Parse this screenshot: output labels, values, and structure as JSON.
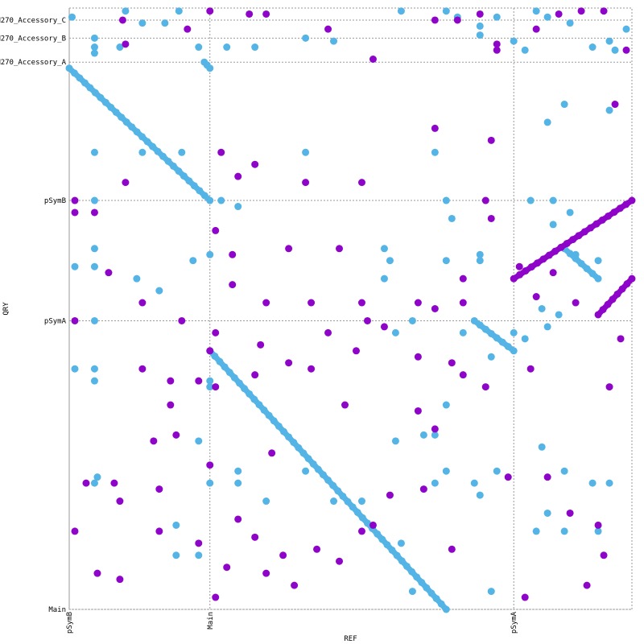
{
  "chart_data": {
    "type": "scatter",
    "title": "",
    "xlabel": "REF",
    "ylabel": "QRY",
    "grid": true,
    "colors": {
      "forward": "#55b4e6",
      "reverse": "#8e05c9",
      "grid": "#9a9a9a"
    },
    "x_axis": {
      "range": [
        0,
        10.0
      ],
      "ticks": [
        {
          "label": "pSymB",
          "value": 0.0
        },
        {
          "label": "Main",
          "value": 2.5
        },
        {
          "label": "pSymA",
          "value": 7.9
        }
      ]
    },
    "y_axis": {
      "range": [
        0,
        10.0
      ],
      "inverted": false,
      "ticks": [
        {
          "label": "Main",
          "value": 0.0
        },
        {
          "label": "pSymA",
          "value": 4.8
        },
        {
          "label": "pSymB",
          "value": 6.8
        },
        {
          "label": "M270_Accessory_A",
          "value": 9.1
        },
        {
          "label": "M270_Accessory_B",
          "value": 9.5
        },
        {
          "label": "M270_Accessory_C",
          "value": 9.8
        }
      ]
    },
    "series": [
      {
        "name": "forward",
        "color": "#55b4e6",
        "segments": [
          [
            [
              0.0,
              9.0
            ],
            [
              2.5,
              6.8
            ]
          ],
          [
            [
              2.5,
              4.3
            ],
            [
              6.7,
              0.0
            ]
          ],
          [
            [
              7.2,
              4.8
            ],
            [
              7.9,
              4.3
            ]
          ],
          [
            [
              8.8,
              6.0
            ],
            [
              9.4,
              5.5
            ]
          ],
          [
            [
              2.4,
              9.1
            ],
            [
              2.5,
              9.0
            ]
          ]
        ],
        "points": [
          [
            0.05,
            9.85
          ],
          [
            0.45,
            9.5
          ],
          [
            0.45,
            9.35
          ],
          [
            0.45,
            9.25
          ],
          [
            0.9,
            9.35
          ],
          [
            1.0,
            9.95
          ],
          [
            1.3,
            9.75
          ],
          [
            1.7,
            9.75
          ],
          [
            1.95,
            9.95
          ],
          [
            2.3,
            9.35
          ],
          [
            2.8,
            9.35
          ],
          [
            3.3,
            9.35
          ],
          [
            4.2,
            9.5
          ],
          [
            4.7,
            9.45
          ],
          [
            5.9,
            9.95
          ],
          [
            6.7,
            9.95
          ],
          [
            6.9,
            9.85
          ],
          [
            7.3,
            9.55
          ],
          [
            7.3,
            9.7
          ],
          [
            7.6,
            9.85
          ],
          [
            7.9,
            9.45
          ],
          [
            8.1,
            9.3
          ],
          [
            8.3,
            9.95
          ],
          [
            8.5,
            9.85
          ],
          [
            8.9,
            9.75
          ],
          [
            9.3,
            9.35
          ],
          [
            9.6,
            9.45
          ],
          [
            9.9,
            9.65
          ],
          [
            0.45,
            7.6
          ],
          [
            0.45,
            6.8
          ],
          [
            1.3,
            7.6
          ],
          [
            2.0,
            7.6
          ],
          [
            3.0,
            6.7
          ],
          [
            4.2,
            7.6
          ],
          [
            2.7,
            6.8
          ],
          [
            0.45,
            6.0
          ],
          [
            0.45,
            5.7
          ],
          [
            0.1,
            5.7
          ],
          [
            1.2,
            5.5
          ],
          [
            1.6,
            5.3
          ],
          [
            2.2,
            5.8
          ],
          [
            2.5,
            5.9
          ],
          [
            5.7,
            5.8
          ],
          [
            6.7,
            5.8
          ],
          [
            6.8,
            6.5
          ],
          [
            6.5,
            7.6
          ],
          [
            6.7,
            6.8
          ],
          [
            5.6,
            6.0
          ],
          [
            5.6,
            5.5
          ],
          [
            7.3,
            5.8
          ],
          [
            7.3,
            5.9
          ],
          [
            8.2,
            6.8
          ],
          [
            8.6,
            6.8
          ],
          [
            8.6,
            6.4
          ],
          [
            8.9,
            6.6
          ],
          [
            9.0,
            5.9
          ],
          [
            9.4,
            5.8
          ],
          [
            9.6,
            8.3
          ],
          [
            9.7,
            9.3
          ],
          [
            8.8,
            8.4
          ],
          [
            8.5,
            8.1
          ],
          [
            8.4,
            5.0
          ],
          [
            8.7,
            4.9
          ],
          [
            8.1,
            4.5
          ],
          [
            8.4,
            2.7
          ],
          [
            8.3,
            1.3
          ],
          [
            8.8,
            1.3
          ],
          [
            9.4,
            1.3
          ],
          [
            8.5,
            1.6
          ],
          [
            8.8,
            2.3
          ],
          [
            9.3,
            2.1
          ],
          [
            9.6,
            2.1
          ],
          [
            0.45,
            4.8
          ],
          [
            0.45,
            4.0
          ],
          [
            0.45,
            3.8
          ],
          [
            0.1,
            4.0
          ],
          [
            0.5,
            2.2
          ],
          [
            0.45,
            2.1
          ],
          [
            1.9,
            1.4
          ],
          [
            1.9,
            0.9
          ],
          [
            2.3,
            0.9
          ],
          [
            2.5,
            2.1
          ],
          [
            2.5,
            3.7
          ],
          [
            2.5,
            3.8
          ],
          [
            2.3,
            2.8
          ],
          [
            3.0,
            2.3
          ],
          [
            3.0,
            2.1
          ],
          [
            3.5,
            1.8
          ],
          [
            4.2,
            2.3
          ],
          [
            4.7,
            1.8
          ],
          [
            5.2,
            1.8
          ],
          [
            5.8,
            2.8
          ],
          [
            5.8,
            4.6
          ],
          [
            6.1,
            4.8
          ],
          [
            6.3,
            2.9
          ],
          [
            6.5,
            2.9
          ],
          [
            6.7,
            2.3
          ],
          [
            6.5,
            2.1
          ],
          [
            7.2,
            2.1
          ],
          [
            7.3,
            1.9
          ],
          [
            7.0,
            4.6
          ],
          [
            7.6,
            2.3
          ],
          [
            7.5,
            4.2
          ],
          [
            7.9,
            4.6
          ],
          [
            8.5,
            4.7
          ],
          [
            5.9,
            1.1
          ],
          [
            6.7,
            3.4
          ],
          [
            6.1,
            0.3
          ],
          [
            7.5,
            0.3
          ]
        ]
      },
      {
        "name": "reverse",
        "color": "#8e05c9",
        "segments": [
          [
            [
              7.9,
              5.5
            ],
            [
              10.0,
              6.8
            ]
          ],
          [
            [
              9.4,
              4.9
            ],
            [
              10.0,
              5.5
            ]
          ]
        ],
        "points": [
          [
            0.95,
            9.8
          ],
          [
            1.0,
            9.4
          ],
          [
            2.1,
            9.65
          ],
          [
            2.5,
            9.95
          ],
          [
            3.2,
            9.9
          ],
          [
            3.5,
            9.9
          ],
          [
            4.6,
            9.65
          ],
          [
            5.4,
            9.15
          ],
          [
            6.5,
            9.8
          ],
          [
            6.9,
            9.8
          ],
          [
            7.3,
            9.9
          ],
          [
            7.6,
            9.3
          ],
          [
            7.6,
            9.4
          ],
          [
            8.3,
            9.65
          ],
          [
            8.7,
            9.9
          ],
          [
            9.1,
            9.95
          ],
          [
            9.5,
            9.95
          ],
          [
            9.9,
            9.3
          ],
          [
            9.7,
            8.4
          ],
          [
            6.5,
            8.0
          ],
          [
            7.5,
            7.8
          ],
          [
            5.2,
            7.1
          ],
          [
            4.2,
            7.1
          ],
          [
            3.3,
            7.4
          ],
          [
            3.0,
            7.2
          ],
          [
            2.7,
            7.6
          ],
          [
            1.0,
            7.1
          ],
          [
            0.1,
            6.8
          ],
          [
            0.1,
            6.6
          ],
          [
            0.45,
            6.6
          ],
          [
            2.6,
            6.3
          ],
          [
            2.9,
            5.9
          ],
          [
            2.9,
            5.4
          ],
          [
            3.5,
            5.1
          ],
          [
            4.3,
            5.1
          ],
          [
            3.9,
            6.0
          ],
          [
            4.8,
            6.0
          ],
          [
            5.2,
            5.1
          ],
          [
            5.3,
            4.8
          ],
          [
            6.2,
            5.1
          ],
          [
            6.5,
            5.0
          ],
          [
            7.0,
            5.5
          ],
          [
            7.0,
            5.1
          ],
          [
            7.4,
            6.8
          ],
          [
            7.5,
            6.5
          ],
          [
            8.0,
            5.7
          ],
          [
            8.3,
            5.2
          ],
          [
            8.6,
            5.6
          ],
          [
            9.0,
            5.1
          ],
          [
            9.8,
            4.5
          ],
          [
            9.6,
            3.7
          ],
          [
            8.2,
            4.0
          ],
          [
            0.1,
            4.8
          ],
          [
            1.3,
            5.1
          ],
          [
            0.7,
            5.6
          ],
          [
            2.0,
            4.8
          ],
          [
            2.6,
            4.6
          ],
          [
            2.5,
            4.3
          ],
          [
            2.6,
            3.7
          ],
          [
            2.3,
            3.8
          ],
          [
            3.4,
            4.4
          ],
          [
            3.3,
            3.9
          ],
          [
            3.9,
            4.1
          ],
          [
            4.3,
            4.0
          ],
          [
            4.6,
            4.6
          ],
          [
            5.1,
            4.3
          ],
          [
            5.6,
            4.7
          ],
          [
            6.2,
            4.2
          ],
          [
            6.8,
            4.1
          ],
          [
            7.0,
            3.9
          ],
          [
            7.4,
            3.7
          ],
          [
            6.5,
            3.0
          ],
          [
            6.2,
            3.3
          ],
          [
            5.7,
            1.9
          ],
          [
            5.4,
            1.4
          ],
          [
            5.2,
            1.3
          ],
          [
            4.4,
            1.0
          ],
          [
            4.8,
            0.8
          ],
          [
            4.0,
            0.4
          ],
          [
            3.8,
            0.9
          ],
          [
            3.5,
            0.6
          ],
          [
            3.3,
            1.2
          ],
          [
            3.0,
            1.5
          ],
          [
            2.8,
            0.7
          ],
          [
            2.6,
            0.2
          ],
          [
            2.3,
            1.1
          ],
          [
            1.9,
            2.9
          ],
          [
            1.8,
            3.4
          ],
          [
            1.5,
            2.8
          ],
          [
            1.6,
            2.0
          ],
          [
            1.6,
            1.3
          ],
          [
            0.9,
            1.8
          ],
          [
            0.8,
            2.1
          ],
          [
            0.9,
            0.5
          ],
          [
            0.5,
            0.6
          ],
          [
            0.1,
            1.3
          ],
          [
            0.3,
            2.1
          ],
          [
            1.3,
            4.0
          ],
          [
            1.8,
            3.8
          ],
          [
            4.9,
            3.4
          ],
          [
            6.3,
            2.0
          ],
          [
            6.8,
            1.0
          ],
          [
            7.8,
            2.2
          ],
          [
            8.5,
            2.2
          ],
          [
            8.9,
            1.6
          ],
          [
            9.4,
            1.4
          ],
          [
            9.5,
            0.9
          ],
          [
            9.2,
            0.4
          ],
          [
            8.1,
            0.2
          ],
          [
            2.5,
            2.4
          ],
          [
            3.6,
            2.6
          ]
        ]
      }
    ]
  }
}
